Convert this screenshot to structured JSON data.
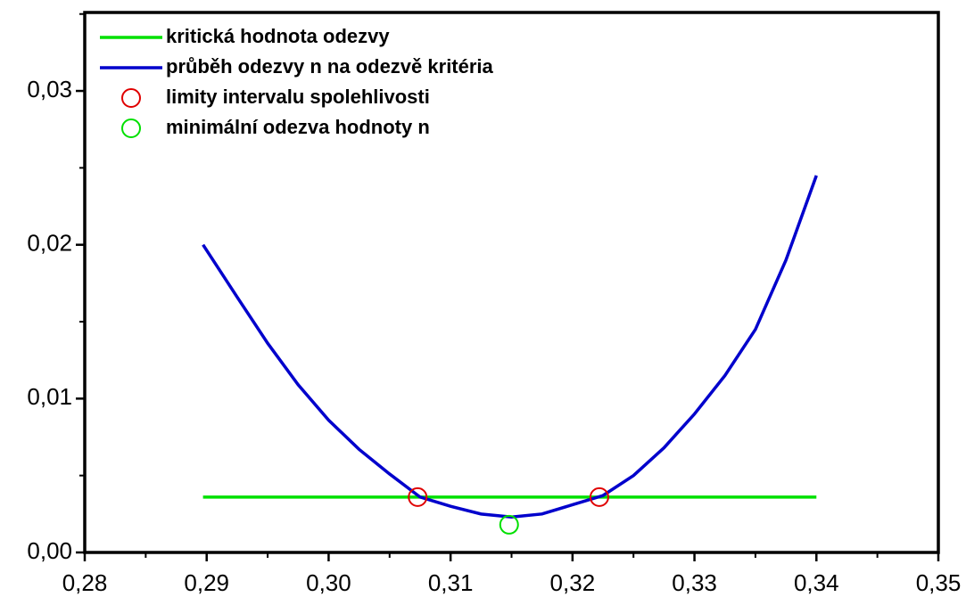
{
  "chart_data": {
    "type": "line",
    "xlim": [
      0.28,
      0.35
    ],
    "ylim": [
      0,
      0.0351
    ],
    "xticks": [
      {
        "value": 0.28,
        "label": "0,28"
      },
      {
        "value": 0.29,
        "label": "0,29"
      },
      {
        "value": 0.3,
        "label": "0,30"
      },
      {
        "value": 0.31,
        "label": "0,31"
      },
      {
        "value": 0.32,
        "label": "0,32"
      },
      {
        "value": 0.33,
        "label": "0,33"
      },
      {
        "value": 0.34,
        "label": "0,34"
      },
      {
        "value": 0.35,
        "label": "0,35"
      }
    ],
    "yticks": [
      {
        "value": 0,
        "label": "0,00"
      },
      {
        "value": 0.01,
        "label": "0,01"
      },
      {
        "value": 0.02,
        "label": "0,02"
      },
      {
        "value": 0.03,
        "label": "0,03"
      }
    ],
    "series": [
      {
        "name": "kritická hodnota odezvy",
        "type": "line",
        "color": "#00e000",
        "x": [
          0.2897,
          0.34
        ],
        "values": [
          0.0036,
          0.0036
        ]
      },
      {
        "name": "průběh odezvy n na odezvě kritéria",
        "type": "line",
        "color": "#0000cc",
        "x": [
          0.2897,
          0.2925,
          0.295,
          0.2975,
          0.3,
          0.3025,
          0.305,
          0.3075,
          0.31,
          0.3125,
          0.315,
          0.3175,
          0.32,
          0.3225,
          0.325,
          0.3275,
          0.33,
          0.3325,
          0.335,
          0.3375,
          0.34
        ],
        "values": [
          0.02,
          0.0166,
          0.0136,
          0.0109,
          0.0086,
          0.0067,
          0.0051,
          0.0036,
          0.003,
          0.0025,
          0.0023,
          0.0025,
          0.0031,
          0.0037,
          0.005,
          0.0068,
          0.009,
          0.0115,
          0.0145,
          0.019,
          0.0245
        ]
      },
      {
        "name": "limity intervalu spolehlivosti",
        "type": "scatter",
        "color": "#e00000",
        "x": [
          0.3073,
          0.3222
        ],
        "values": [
          0.0036,
          0.0036
        ]
      },
      {
        "name": "minimální odezva hodnoty n",
        "type": "scatter",
        "color": "#00e000",
        "x": [
          0.3148
        ],
        "values": [
          0.0018
        ]
      }
    ]
  }
}
